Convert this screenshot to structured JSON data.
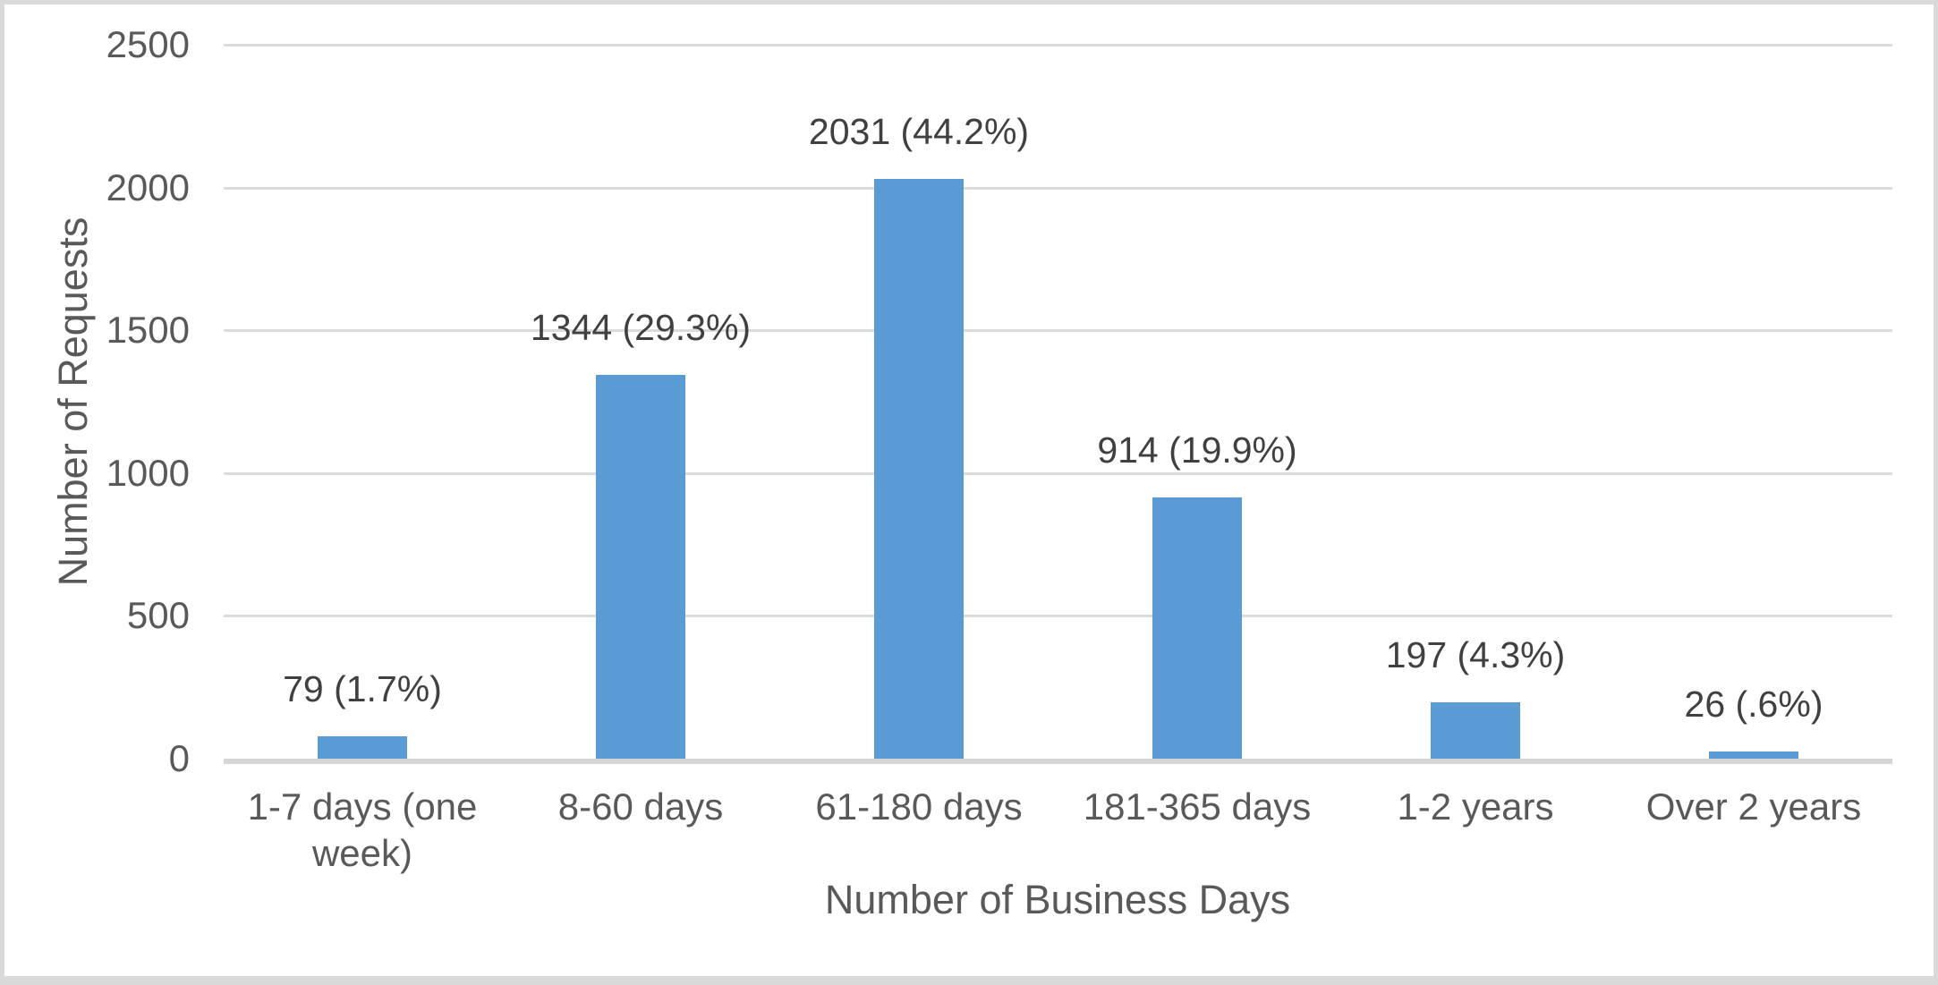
{
  "chart_data": {
    "type": "bar",
    "title": "",
    "xlabel": "Number of Business Days",
    "ylabel": "Number of Requests",
    "categories": [
      "1-7 days (one week)",
      "8-60 days",
      "61-180 days",
      "181-365 days",
      "1-2 years",
      "Over 2 years"
    ],
    "values": [
      79,
      1344,
      2031,
      914,
      197,
      26
    ],
    "data_labels": [
      "79 (1.7%)",
      "1344 (29.3%)",
      "2031 (44.2%)",
      "914 (19.9%)",
      "197 (4.3%)",
      "26 (.6%)"
    ],
    "ytick_labels": [
      "0",
      "500",
      "1000",
      "1500",
      "2000",
      "2500"
    ],
    "ytick_values": [
      0,
      500,
      1000,
      1500,
      2000,
      2500
    ],
    "ylim": [
      0,
      2500
    ],
    "grid": true,
    "legend_position": "none",
    "colors": {
      "bar": "#5B9BD5",
      "gridline": "#DBDBDB",
      "axis_line": "#D6D6D6",
      "tick_text": "#595959",
      "data_label_text": "#404040",
      "frame_border": "#D9D9D9",
      "background": "#FFFFFF"
    }
  }
}
